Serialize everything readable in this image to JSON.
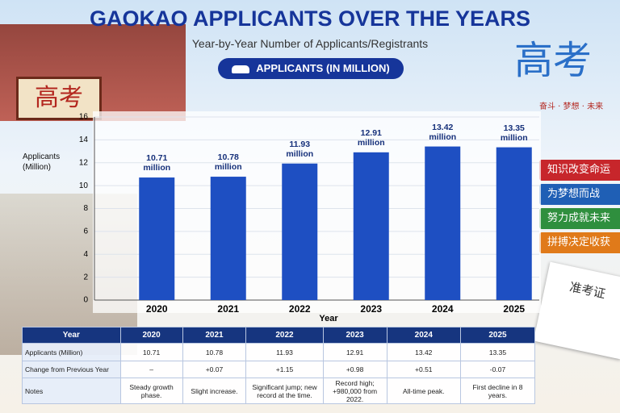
{
  "chart_data": {
    "type": "bar",
    "title": "GAOKAO APPLICANTS OVER THE YEARS",
    "subtitle": "Year-by-Year Number of Applicants/Registrants",
    "x_label": "Year",
    "y_label": "Applicants (Million)",
    "categories": [
      "2020",
      "2021",
      "2022",
      "2023",
      "2024",
      "2025"
    ],
    "series": [
      {
        "name": "APPLICANTS (IN MILLION)",
        "color": "#1e4fc2",
        "values": [
          10.71,
          10.78,
          11.93,
          12.91,
          13.42,
          13.35
        ],
        "value_labels": [
          "10.71 million",
          "10.78 million",
          "11.93 million",
          "12.91 million",
          "13.42 million",
          "13.35 million"
        ]
      }
    ],
    "ylim": [
      0,
      16
    ],
    "yticks": [
      0,
      2,
      4,
      6,
      8,
      10,
      12,
      14,
      16
    ],
    "grid": true
  },
  "table": {
    "header": [
      "Year",
      "2020",
      "2021",
      "2022",
      "2023",
      "2024",
      "2025"
    ],
    "rows": [
      [
        "Applicants (Million)",
        "10.71",
        "10.78",
        "11.93",
        "12.91",
        "13.42",
        "13.35"
      ],
      [
        "Change from Previous Year",
        "–",
        "+0.07",
        "+1.15",
        "+0.98",
        "+0.51",
        "-0.07"
      ],
      [
        "Notes",
        "Steady growth phase.",
        "Slight increase.",
        "Significant jump; new record at the time.",
        "Record high; +980,000 from 2022.",
        "All-time peak.",
        "First decline in 8 years."
      ]
    ]
  },
  "decor": {
    "gate_sign": "高考",
    "big_title": "高考",
    "motto": "奋斗 · 梦想 · 未来",
    "books": [
      "知识改变命运",
      "为梦想而战",
      "努力成就未来",
      "拼搏决定收获"
    ],
    "ticket": "准考证"
  }
}
